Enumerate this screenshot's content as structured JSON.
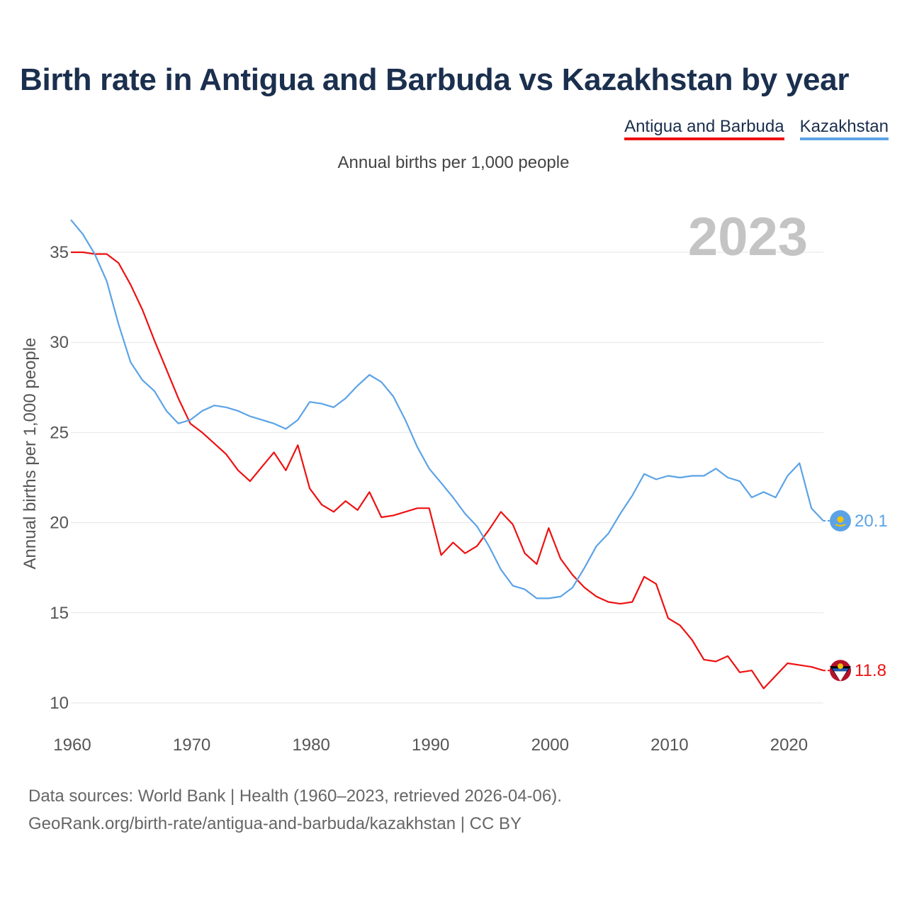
{
  "title": "Birth rate in Antigua and Barbuda vs Kazakhstan by year",
  "subtitle": "Annual births per 1,000 people",
  "year_watermark": "2023",
  "legend": [
    {
      "label": "Antigua and Barbuda",
      "color": "#ee1111"
    },
    {
      "label": "Kazakhstan",
      "color": "#5ba3e6"
    }
  ],
  "footer": {
    "line1": "Data sources: World Bank | Health (1960–2023, retrieved 2026-04-06).",
    "line2": "GeoRank.org/birth-rate/antigua-and-barbuda/kazakhstan | CC BY"
  },
  "chart_data": {
    "type": "line",
    "title": "Birth rate in Antigua and Barbuda vs Kazakhstan by year",
    "xlabel": "",
    "ylabel": "Annual births per 1,000 people",
    "x": [
      1960,
      1961,
      1962,
      1963,
      1964,
      1965,
      1966,
      1967,
      1968,
      1969,
      1970,
      1971,
      1972,
      1973,
      1974,
      1975,
      1976,
      1977,
      1978,
      1979,
      1980,
      1981,
      1982,
      1983,
      1984,
      1985,
      1986,
      1987,
      1988,
      1989,
      1990,
      1991,
      1992,
      1993,
      1994,
      1995,
      1996,
      1997,
      1998,
      1999,
      2000,
      2001,
      2002,
      2003,
      2004,
      2005,
      2006,
      2007,
      2008,
      2009,
      2010,
      2011,
      2012,
      2013,
      2014,
      2015,
      2016,
      2017,
      2018,
      2019,
      2020,
      2021,
      2022,
      2023
    ],
    "xlim": [
      1960,
      2023
    ],
    "xticks": [
      1960,
      1970,
      1980,
      1990,
      2000,
      2010,
      2020
    ],
    "ylim": [
      10,
      36
    ],
    "yticks": [
      10,
      15,
      20,
      25,
      30,
      35
    ],
    "grid": true,
    "legend_position": "top-right",
    "series": [
      {
        "name": "Antigua and Barbuda",
        "color": "#ee1111",
        "end_label": "11.8",
        "values": [
          35.0,
          35.0,
          34.9,
          34.9,
          34.4,
          33.2,
          31.8,
          30.1,
          28.5,
          26.9,
          25.5,
          25.0,
          24.4,
          23.8,
          22.9,
          22.3,
          23.1,
          23.9,
          22.9,
          24.3,
          21.9,
          21.0,
          20.6,
          21.2,
          20.7,
          21.7,
          20.3,
          20.4,
          20.6,
          20.8,
          20.8,
          18.2,
          18.9,
          18.3,
          18.7,
          19.6,
          20.6,
          19.9,
          18.3,
          17.7,
          19.7,
          18.0,
          17.1,
          16.4,
          15.9,
          15.6,
          15.5,
          15.6,
          17.0,
          16.6,
          14.7,
          14.3,
          13.5,
          12.4,
          12.3,
          12.6,
          11.7,
          11.8,
          10.8,
          11.5,
          12.2,
          12.1,
          12.0,
          11.8
        ]
      },
      {
        "name": "Kazakhstan",
        "color": "#5ba3e6",
        "end_label": "20.1",
        "values": [
          36.8,
          36.0,
          34.9,
          33.4,
          31.0,
          28.9,
          27.9,
          27.3,
          26.2,
          25.5,
          25.7,
          26.2,
          26.5,
          26.4,
          26.2,
          25.9,
          25.7,
          25.5,
          25.2,
          25.7,
          26.7,
          26.6,
          26.4,
          26.9,
          27.6,
          28.2,
          27.8,
          27.0,
          25.7,
          24.2,
          23.0,
          22.2,
          21.4,
          20.5,
          19.8,
          18.7,
          17.4,
          16.5,
          16.3,
          15.8,
          15.8,
          15.9,
          16.4,
          17.5,
          18.7,
          19.4,
          20.5,
          21.5,
          22.7,
          22.4,
          22.6,
          22.5,
          22.6,
          22.6,
          23.0,
          22.5,
          22.3,
          21.4,
          21.7,
          21.4,
          22.6,
          23.3,
          20.8,
          20.1
        ]
      }
    ]
  }
}
